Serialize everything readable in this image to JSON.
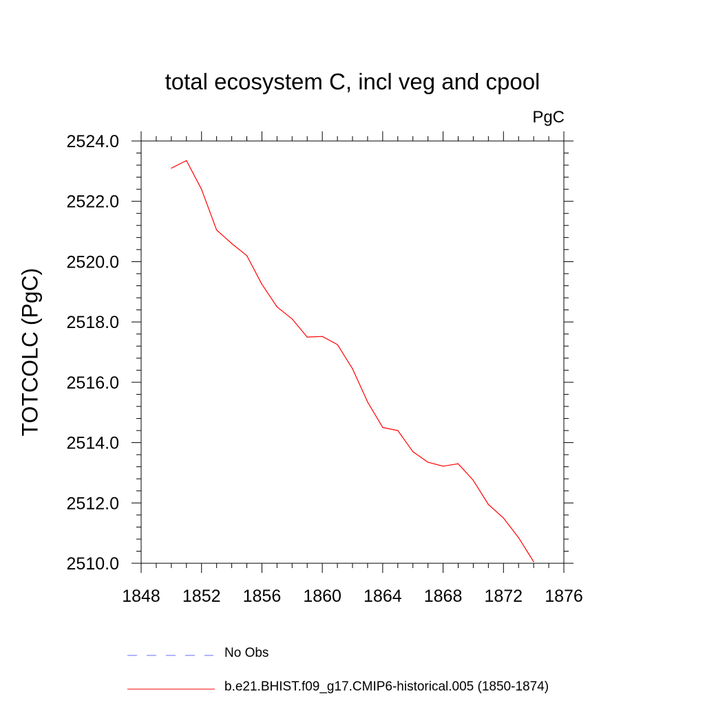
{
  "chart_data": {
    "type": "line",
    "title": "total ecosystem C, incl veg and cpool",
    "units": "PgC",
    "xlabel": "",
    "ylabel": "TOTCOLC  (PgC)",
    "xlim": [
      1848,
      1876
    ],
    "ylim": [
      2510.0,
      2524.0
    ],
    "x_ticks": [
      1848,
      1852,
      1856,
      1860,
      1864,
      1868,
      1872,
      1876
    ],
    "y_ticks": [
      "2510.0",
      "2512.0",
      "2514.0",
      "2516.0",
      "2518.0",
      "2520.0",
      "2522.0",
      "2524.0"
    ],
    "series": [
      {
        "name": "b.e21.BHIST.f09_g17.CMIP6-historical.005 (1850-1874)",
        "color": "#ff0000",
        "style": "solid",
        "x": [
          1850,
          1851,
          1852,
          1853,
          1854,
          1855,
          1856,
          1857,
          1858,
          1859,
          1860,
          1861,
          1862,
          1863,
          1864,
          1865,
          1866,
          1867,
          1868,
          1869,
          1870,
          1871,
          1872,
          1873,
          1874
        ],
        "y": [
          2523.1,
          2523.35,
          2522.4,
          2521.05,
          2520.6,
          2520.2,
          2519.25,
          2518.5,
          2518.1,
          2517.5,
          2517.52,
          2517.25,
          2516.45,
          2515.35,
          2514.5,
          2514.4,
          2513.7,
          2513.35,
          2513.22,
          2513.3,
          2512.75,
          2511.95,
          2511.5,
          2510.85,
          2510.05
        ]
      }
    ],
    "legend": [
      {
        "label": "No Obs",
        "color": "#6a6aff",
        "style": "dashed"
      },
      {
        "label": "b.e21.BHIST.f09_g17.CMIP6-historical.005 (1850-1874)",
        "color": "#ff0000",
        "style": "solid"
      }
    ]
  }
}
